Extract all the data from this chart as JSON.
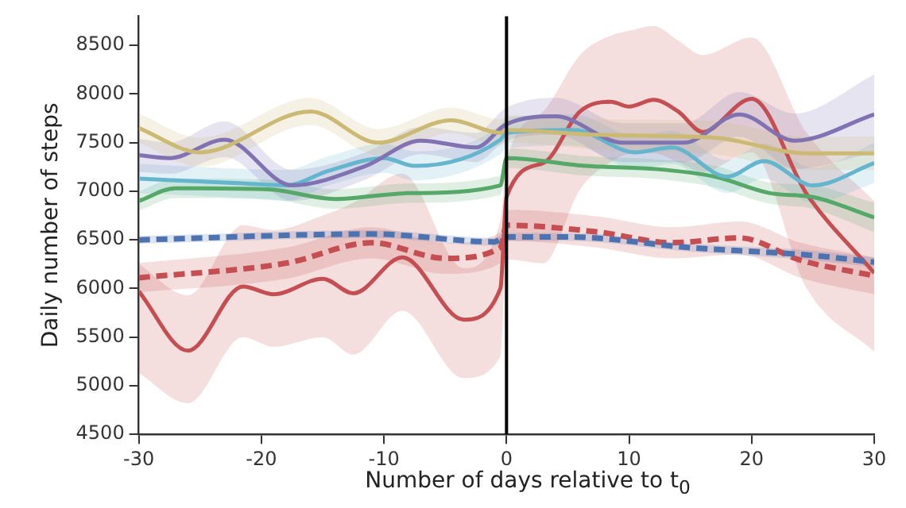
{
  "chart_data": {
    "type": "line",
    "xlabel": "Number of days relative to t$_{0}$",
    "ylabel": "Daily number of steps",
    "xlim": [
      -30,
      30
    ],
    "xticks": [
      -30,
      -20,
      -10,
      0,
      10,
      20,
      30
    ],
    "ylim": [
      4500,
      8800
    ],
    "yticks": [
      4500,
      5000,
      5500,
      6000,
      6500,
      7000,
      7500,
      8000,
      8500
    ],
    "grid": false,
    "legend": false,
    "marker": "none",
    "ref_lines": [
      {
        "axis": "x",
        "value": 0,
        "color": "#000000"
      }
    ],
    "series": [
      {
        "color": "#ccb974",
        "line_style": "solid",
        "x": [
          -30,
          -25,
          -16,
          -10.5,
          -4.5,
          -0.5,
          0,
          7.5,
          17,
          24.5,
          30
        ],
        "values": [
          7650,
          7400,
          7820,
          7500,
          7730,
          7600,
          7630,
          7580,
          7550,
          7390,
          7390
        ],
        "lower": [
          7500,
          7250,
          7680,
          7370,
          7600,
          7470,
          7500,
          7430,
          7380,
          7220,
          7220
        ],
        "upper": [
          7800,
          7550,
          7960,
          7640,
          7860,
          7740,
          7780,
          7740,
          7720,
          7560,
          7560
        ]
      },
      {
        "color": "#8172b2",
        "line_style": "solid",
        "x": [
          -30,
          -27.5,
          -23,
          -17.5,
          -11.5,
          -7,
          -2.5,
          0,
          4,
          9.5,
          14.5,
          19,
          23.5,
          30
        ],
        "values": [
          7370,
          7340,
          7530,
          7060,
          7260,
          7520,
          7450,
          7690,
          7770,
          7500,
          7500,
          7790,
          7520,
          7790
        ],
        "lower": [
          7200,
          7180,
          7350,
          6900,
          7120,
          7380,
          7300,
          7520,
          7580,
          7300,
          7300,
          7560,
          7230,
          7400
        ],
        "upper": [
          7540,
          7500,
          7720,
          7220,
          7400,
          7660,
          7600,
          7860,
          7960,
          7700,
          7700,
          8020,
          7800,
          8200
        ]
      },
      {
        "color": "#64b5cd",
        "line_style": "solid",
        "x": [
          -30,
          -21.5,
          -18,
          -14.5,
          -10,
          -7.5,
          -0.5,
          0,
          5.5,
          10.5,
          13.5,
          18,
          21,
          25,
          30
        ],
        "values": [
          7130,
          7080,
          7060,
          7210,
          7340,
          7260,
          7530,
          7600,
          7630,
          7400,
          7450,
          7150,
          7310,
          7060,
          7290
        ],
        "lower": [
          6980,
          6930,
          6900,
          7060,
          7190,
          7110,
          7380,
          7440,
          7470,
          7230,
          7280,
          6980,
          7130,
          6880,
          7080
        ],
        "upper": [
          7280,
          7230,
          7220,
          7360,
          7490,
          7410,
          7680,
          7760,
          7790,
          7570,
          7620,
          7320,
          7490,
          7240,
          7500
        ]
      },
      {
        "color": "#55a868",
        "line_style": "solid",
        "x": [
          -30,
          -27,
          -19.5,
          -14,
          -8,
          -0.5,
          0,
          6.5,
          12,
          17,
          21.5,
          25,
          30
        ],
        "values": [
          6900,
          7030,
          7020,
          6920,
          6980,
          7060,
          7340,
          7260,
          7230,
          7150,
          6980,
          6940,
          6730
        ],
        "lower": [
          6800,
          6930,
          6920,
          6820,
          6880,
          6960,
          7240,
          7160,
          7130,
          7040,
          6870,
          6820,
          6580
        ],
        "upper": [
          7000,
          7130,
          7120,
          7020,
          7080,
          7160,
          7440,
          7360,
          7330,
          7260,
          7090,
          7060,
          6880
        ]
      },
      {
        "color": "#4c72b0",
        "line_style": "dashed",
        "x": [
          -30,
          -11,
          -1,
          0,
          5,
          15,
          25,
          30
        ],
        "values": [
          6500,
          6560,
          6480,
          6530,
          6530,
          6420,
          6340,
          6270
        ],
        "lower": [
          6460,
          6520,
          6440,
          6490,
          6490,
          6380,
          6290,
          6220
        ],
        "upper": [
          6540,
          6600,
          6520,
          6570,
          6570,
          6460,
          6390,
          6320
        ]
      },
      {
        "color": "#c44e52",
        "line_style": "dashed",
        "x": [
          -30,
          -18,
          -11,
          -5,
          -0.5,
          0,
          7.5,
          13.5,
          19,
          24,
          30
        ],
        "values": [
          6110,
          6260,
          6470,
          6310,
          6420,
          6650,
          6580,
          6470,
          6520,
          6290,
          6130
        ],
        "lower": [
          5960,
          6100,
          6310,
          6150,
          6260,
          6490,
          6420,
          6310,
          6350,
          6110,
          5940
        ],
        "upper": [
          6260,
          6420,
          6630,
          6470,
          6580,
          6810,
          6740,
          6630,
          6690,
          6470,
          6320
        ]
      },
      {
        "color": "#c44e52",
        "line_style": "solid",
        "x": [
          -30,
          -26,
          -21.5,
          -19,
          -15,
          -12.5,
          -8.5,
          -3.5,
          -0.5,
          0,
          3,
          6,
          8.5,
          10,
          12,
          14,
          16,
          20,
          24.5,
          30
        ],
        "values": [
          5970,
          5360,
          6020,
          5940,
          6100,
          5950,
          6320,
          5680,
          6000,
          6940,
          7290,
          7820,
          7920,
          7870,
          7940,
          7820,
          7610,
          7950,
          6970,
          6160
        ],
        "lower": [
          5130,
          4820,
          5500,
          5400,
          5500,
          5320,
          5770,
          5080,
          5300,
          6300,
          6260,
          7020,
          7300,
          7380,
          7390,
          7300,
          7200,
          7400,
          6000,
          5350
        ],
        "upper": [
          6250,
          5930,
          6650,
          6600,
          6750,
          6880,
          7180,
          6210,
          6700,
          7300,
          7820,
          8400,
          8600,
          8650,
          8700,
          8550,
          8400,
          8580,
          7600,
          6900
        ]
      }
    ]
  }
}
